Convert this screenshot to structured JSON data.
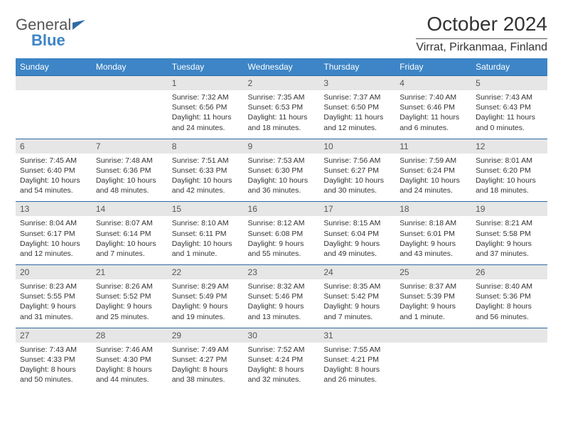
{
  "brand": {
    "word1": "General",
    "word2": "Blue"
  },
  "title": {
    "month": "October 2024",
    "location": "Virrat, Pirkanmaa, Finland"
  },
  "colors": {
    "header_bg": "#3d85c6",
    "daynum_bg": "#e6e6e6",
    "rule": "#2d6aa3"
  },
  "daynames": [
    "Sunday",
    "Monday",
    "Tuesday",
    "Wednesday",
    "Thursday",
    "Friday",
    "Saturday"
  ],
  "weeks": [
    {
      "nums": [
        "",
        "",
        "1",
        "2",
        "3",
        "4",
        "5"
      ],
      "cells": [
        null,
        null,
        {
          "sunrise": "Sunrise: 7:32 AM",
          "sunset": "Sunset: 6:56 PM",
          "daylight": "Daylight: 11 hours and 24 minutes."
        },
        {
          "sunrise": "Sunrise: 7:35 AM",
          "sunset": "Sunset: 6:53 PM",
          "daylight": "Daylight: 11 hours and 18 minutes."
        },
        {
          "sunrise": "Sunrise: 7:37 AM",
          "sunset": "Sunset: 6:50 PM",
          "daylight": "Daylight: 11 hours and 12 minutes."
        },
        {
          "sunrise": "Sunrise: 7:40 AM",
          "sunset": "Sunset: 6:46 PM",
          "daylight": "Daylight: 11 hours and 6 minutes."
        },
        {
          "sunrise": "Sunrise: 7:43 AM",
          "sunset": "Sunset: 6:43 PM",
          "daylight": "Daylight: 11 hours and 0 minutes."
        }
      ]
    },
    {
      "nums": [
        "6",
        "7",
        "8",
        "9",
        "10",
        "11",
        "12"
      ],
      "cells": [
        {
          "sunrise": "Sunrise: 7:45 AM",
          "sunset": "Sunset: 6:40 PM",
          "daylight": "Daylight: 10 hours and 54 minutes."
        },
        {
          "sunrise": "Sunrise: 7:48 AM",
          "sunset": "Sunset: 6:36 PM",
          "daylight": "Daylight: 10 hours and 48 minutes."
        },
        {
          "sunrise": "Sunrise: 7:51 AM",
          "sunset": "Sunset: 6:33 PM",
          "daylight": "Daylight: 10 hours and 42 minutes."
        },
        {
          "sunrise": "Sunrise: 7:53 AM",
          "sunset": "Sunset: 6:30 PM",
          "daylight": "Daylight: 10 hours and 36 minutes."
        },
        {
          "sunrise": "Sunrise: 7:56 AM",
          "sunset": "Sunset: 6:27 PM",
          "daylight": "Daylight: 10 hours and 30 minutes."
        },
        {
          "sunrise": "Sunrise: 7:59 AM",
          "sunset": "Sunset: 6:24 PM",
          "daylight": "Daylight: 10 hours and 24 minutes."
        },
        {
          "sunrise": "Sunrise: 8:01 AM",
          "sunset": "Sunset: 6:20 PM",
          "daylight": "Daylight: 10 hours and 18 minutes."
        }
      ]
    },
    {
      "nums": [
        "13",
        "14",
        "15",
        "16",
        "17",
        "18",
        "19"
      ],
      "cells": [
        {
          "sunrise": "Sunrise: 8:04 AM",
          "sunset": "Sunset: 6:17 PM",
          "daylight": "Daylight: 10 hours and 12 minutes."
        },
        {
          "sunrise": "Sunrise: 8:07 AM",
          "sunset": "Sunset: 6:14 PM",
          "daylight": "Daylight: 10 hours and 7 minutes."
        },
        {
          "sunrise": "Sunrise: 8:10 AM",
          "sunset": "Sunset: 6:11 PM",
          "daylight": "Daylight: 10 hours and 1 minute."
        },
        {
          "sunrise": "Sunrise: 8:12 AM",
          "sunset": "Sunset: 6:08 PM",
          "daylight": "Daylight: 9 hours and 55 minutes."
        },
        {
          "sunrise": "Sunrise: 8:15 AM",
          "sunset": "Sunset: 6:04 PM",
          "daylight": "Daylight: 9 hours and 49 minutes."
        },
        {
          "sunrise": "Sunrise: 8:18 AM",
          "sunset": "Sunset: 6:01 PM",
          "daylight": "Daylight: 9 hours and 43 minutes."
        },
        {
          "sunrise": "Sunrise: 8:21 AM",
          "sunset": "Sunset: 5:58 PM",
          "daylight": "Daylight: 9 hours and 37 minutes."
        }
      ]
    },
    {
      "nums": [
        "20",
        "21",
        "22",
        "23",
        "24",
        "25",
        "26"
      ],
      "cells": [
        {
          "sunrise": "Sunrise: 8:23 AM",
          "sunset": "Sunset: 5:55 PM",
          "daylight": "Daylight: 9 hours and 31 minutes."
        },
        {
          "sunrise": "Sunrise: 8:26 AM",
          "sunset": "Sunset: 5:52 PM",
          "daylight": "Daylight: 9 hours and 25 minutes."
        },
        {
          "sunrise": "Sunrise: 8:29 AM",
          "sunset": "Sunset: 5:49 PM",
          "daylight": "Daylight: 9 hours and 19 minutes."
        },
        {
          "sunrise": "Sunrise: 8:32 AM",
          "sunset": "Sunset: 5:46 PM",
          "daylight": "Daylight: 9 hours and 13 minutes."
        },
        {
          "sunrise": "Sunrise: 8:35 AM",
          "sunset": "Sunset: 5:42 PM",
          "daylight": "Daylight: 9 hours and 7 minutes."
        },
        {
          "sunrise": "Sunrise: 8:37 AM",
          "sunset": "Sunset: 5:39 PM",
          "daylight": "Daylight: 9 hours and 1 minute."
        },
        {
          "sunrise": "Sunrise: 8:40 AM",
          "sunset": "Sunset: 5:36 PM",
          "daylight": "Daylight: 8 hours and 56 minutes."
        }
      ]
    },
    {
      "nums": [
        "27",
        "28",
        "29",
        "30",
        "31",
        "",
        ""
      ],
      "cells": [
        {
          "sunrise": "Sunrise: 7:43 AM",
          "sunset": "Sunset: 4:33 PM",
          "daylight": "Daylight: 8 hours and 50 minutes."
        },
        {
          "sunrise": "Sunrise: 7:46 AM",
          "sunset": "Sunset: 4:30 PM",
          "daylight": "Daylight: 8 hours and 44 minutes."
        },
        {
          "sunrise": "Sunrise: 7:49 AM",
          "sunset": "Sunset: 4:27 PM",
          "daylight": "Daylight: 8 hours and 38 minutes."
        },
        {
          "sunrise": "Sunrise: 7:52 AM",
          "sunset": "Sunset: 4:24 PM",
          "daylight": "Daylight: 8 hours and 32 minutes."
        },
        {
          "sunrise": "Sunrise: 7:55 AM",
          "sunset": "Sunset: 4:21 PM",
          "daylight": "Daylight: 8 hours and 26 minutes."
        },
        null,
        null
      ]
    }
  ]
}
